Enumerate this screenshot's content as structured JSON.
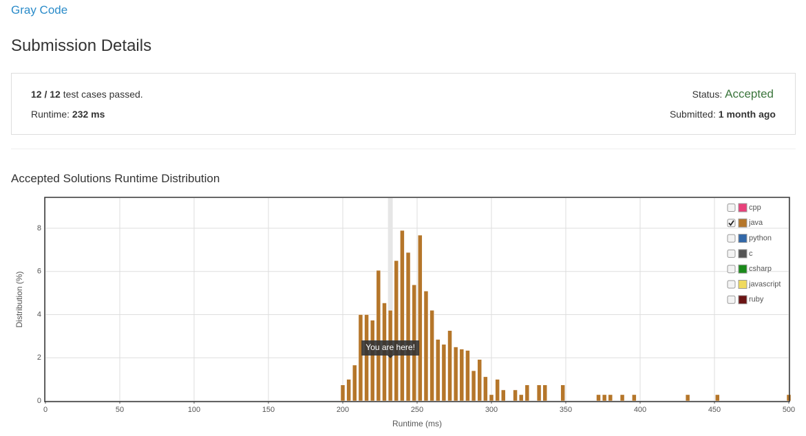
{
  "header": {
    "problem": "Gray Code",
    "title": "Submission Details"
  },
  "submission": {
    "passed": "12 / 12",
    "passed_text": "test cases passed.",
    "runtime_label": "Runtime:",
    "runtime": "232 ms",
    "status_label": "Status:",
    "status": "Accepted",
    "submitted_label": "Submitted:",
    "submitted": "1 month ago"
  },
  "chart_data": {
    "type": "bar",
    "title": "Accepted Solutions Runtime Distribution",
    "x_label": "Runtime (ms)",
    "y_label": "Distribution (%)",
    "x": [
      200,
      204,
      208,
      212,
      216,
      220,
      224,
      228,
      232,
      236,
      240,
      244,
      248,
      252,
      256,
      260,
      264,
      268,
      272,
      276,
      280,
      284,
      288,
      292,
      296,
      300,
      304,
      308,
      316,
      320,
      324,
      332,
      336,
      348,
      372,
      376,
      380,
      388,
      396,
      432,
      452,
      500
    ],
    "series": [
      {
        "name": "cpp",
        "color": "#e8407a",
        "checked": false
      },
      {
        "name": "java",
        "color": "#b5762a",
        "checked": true,
        "values": [
          0.74,
          1.0,
          1.66,
          4.0,
          4.0,
          3.74,
          6.05,
          4.54,
          4.2,
          6.5,
          7.9,
          6.88,
          5.38,
          7.68,
          5.09,
          4.2,
          2.85,
          2.62,
          3.26,
          2.5,
          2.4,
          2.34,
          1.4,
          1.92,
          1.12,
          0.29,
          1.0,
          0.51,
          0.51,
          0.29,
          0.74,
          0.74,
          0.74,
          0.74,
          0.29,
          0.29,
          0.29,
          0.29,
          0.29,
          0.29,
          0.29,
          0.29
        ]
      },
      {
        "name": "python",
        "color": "#3268a8",
        "checked": false
      },
      {
        "name": "c",
        "color": "#555555",
        "checked": false
      },
      {
        "name": "csharp",
        "color": "#1a8a1a",
        "checked": false
      },
      {
        "name": "javascript",
        "color": "#f0da5e",
        "checked": false
      },
      {
        "name": "ruby",
        "color": "#6b1414",
        "checked": false
      }
    ],
    "xlim": [
      0,
      500
    ],
    "ylim": [
      0,
      9.4
    ],
    "xticks": [
      0,
      50,
      100,
      150,
      200,
      250,
      300,
      350,
      400,
      450,
      500
    ],
    "yticks": [
      0,
      2,
      4,
      6,
      8
    ],
    "grid": true,
    "legend": "top-right",
    "annotation": {
      "x": 232,
      "text": "You are here!"
    }
  }
}
